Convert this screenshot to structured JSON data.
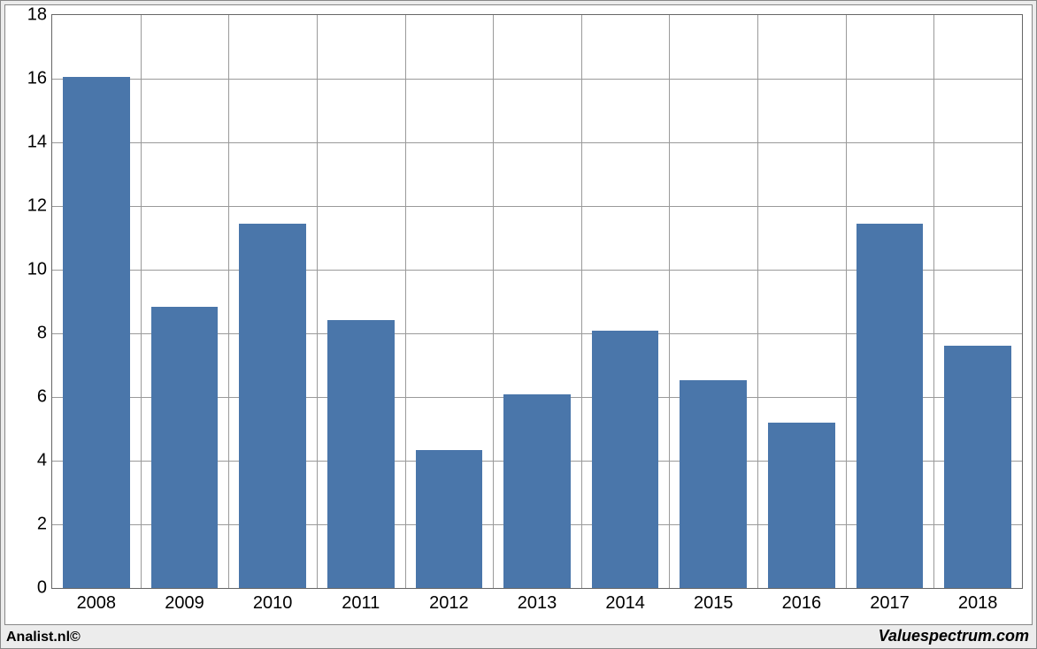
{
  "chart": {
    "type": "bar",
    "categories": [
      "2008",
      "2009",
      "2010",
      "2011",
      "2012",
      "2013",
      "2014",
      "2015",
      "2016",
      "2017",
      "2018"
    ],
    "values": [
      16.05,
      8.82,
      11.45,
      8.42,
      4.33,
      6.07,
      8.08,
      6.52,
      5.2,
      11.45,
      7.6
    ],
    "bar_color": "#4a76aa",
    "ylim": [
      0,
      18
    ],
    "ytick_step": 2,
    "yticks": [
      0,
      2,
      4,
      6,
      8,
      10,
      12,
      14,
      16,
      18
    ],
    "background_color": "#ffffff",
    "frame_background": "#ececec",
    "grid_color": "#9a9a9a",
    "border_color": "#888888",
    "axis_font_size": 20,
    "bar_width_ratio": 0.76
  },
  "footer": {
    "left": "Analist.nl©",
    "right": "Valuespectrum.com",
    "left_fontsize": 16,
    "right_fontsize": 18
  }
}
